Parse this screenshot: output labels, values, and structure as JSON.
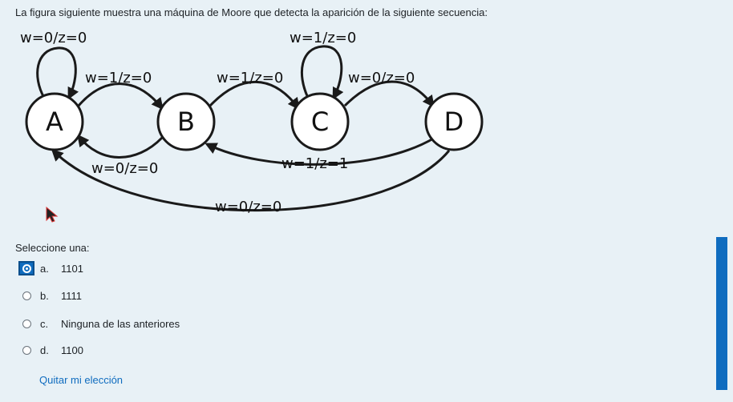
{
  "question": {
    "text": "La figura siguiente muestra una máquina de Moore que detecta la aparición de la siguiente secuencia:"
  },
  "diagram": {
    "states": [
      "A",
      "B",
      "C",
      "D"
    ],
    "transitions": {
      "A_self": "w=0/z=0",
      "A_B": "w=1/z=0",
      "B_A": "w=0/z=0",
      "B_C": "w=1/z=0",
      "C_self": "w=1/z=0",
      "C_D": "w=0/z=0",
      "D_B": "w=1/z=1",
      "D_A": "w=0/z=0"
    }
  },
  "answer": {
    "prompt": "Seleccione una:",
    "options": [
      {
        "letter": "a.",
        "text": "1101",
        "selected": true
      },
      {
        "letter": "b.",
        "text": "1111",
        "selected": false
      },
      {
        "letter": "c.",
        "text": "Ninguna de las anteriores",
        "selected": false
      },
      {
        "letter": "d.",
        "text": "1100",
        "selected": false
      }
    ],
    "clear_label": "Quitar mi elección"
  },
  "colors": {
    "background": "#e8f1f6",
    "accent": "#0f6cbf"
  }
}
